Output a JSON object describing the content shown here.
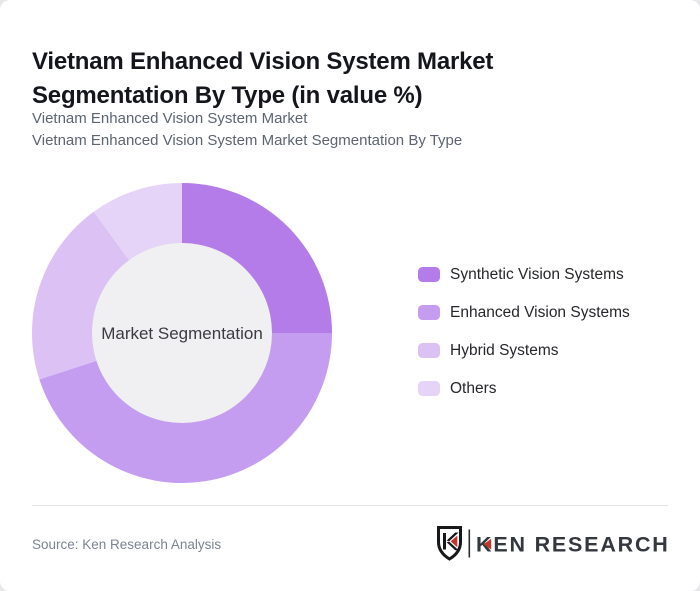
{
  "page": {
    "background": "#e8e8ea",
    "card_background": "#ffffff"
  },
  "header": {
    "title": "Vietnam Enhanced Vision System Market Segmentation By Type (in value %)",
    "subtitle_line1": "Vietnam Enhanced Vision System Market",
    "subtitle_line2": "Vietnam Enhanced Vision System Market Segmentation By Type"
  },
  "chart_data": {
    "type": "pie",
    "variant": "donut",
    "title": "Vietnam Enhanced Vision System Market Segmentation By Type (in value %)",
    "unit": "value %",
    "center_label": "Market Segmentation",
    "center_fill": "#f0eff1",
    "start_angle_deg": 0,
    "direction": "clockwise",
    "inner_radius_ratio": 0.6,
    "legend_position": "right",
    "grid": false,
    "categories": [
      "Synthetic Vision Systems",
      "Enhanced Vision Systems",
      "Hybrid Systems",
      "Others"
    ],
    "values": [
      25,
      45,
      20,
      10
    ],
    "colors": [
      "#b37ce8",
      "#c49df0",
      "#dcc2f4",
      "#e5d4f8"
    ]
  },
  "legend": {
    "items": [
      {
        "label": "Synthetic Vision Systems",
        "color": "#b37ce8"
      },
      {
        "label": "Enhanced Vision Systems",
        "color": "#c49df0"
      },
      {
        "label": "Hybrid Systems",
        "color": "#dcc2f4"
      },
      {
        "label": "Others",
        "color": "#e5d4f8"
      }
    ]
  },
  "footer": {
    "source_text": "Source: Ken Research Analysis",
    "logo": {
      "brand_text": "KEN RESEARCH",
      "mark_letter": "K",
      "accent_color": "#c4342d",
      "text_color": "#33383e",
      "mark_color": "#17181a"
    }
  }
}
